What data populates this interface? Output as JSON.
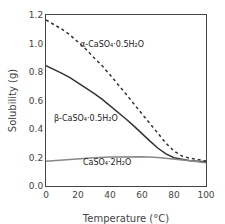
{
  "chart_data": {
    "type": "line",
    "xlabel": "Temperature (°C)",
    "ylabel": "Solubility (g)",
    "xlim": [
      0,
      100
    ],
    "ylim": [
      0.0,
      1.2
    ],
    "xticks": [
      0,
      20,
      40,
      60,
      80,
      100
    ],
    "yticks": [
      {
        "value": 0.0,
        "label": "0.0"
      },
      0.2,
      0.4,
      0.6,
      0.8,
      {
        "value": 1.0,
        "label": "1.0"
      },
      1.2
    ],
    "grid": false,
    "series": [
      {
        "color": "#333333",
        "line_style": "dotted",
        "x": [
          0,
          5,
          10,
          15,
          20,
          25,
          30,
          35,
          40,
          45,
          50,
          55,
          60,
          65,
          70,
          75,
          80,
          85,
          90,
          95,
          100
        ],
        "values": [
          1.165,
          1.135,
          1.1,
          1.06,
          1.01,
          0.96,
          0.9,
          0.845,
          0.78,
          0.715,
          0.645,
          0.575,
          0.505,
          0.435,
          0.365,
          0.3,
          0.245,
          0.21,
          0.195,
          0.183,
          0.175
        ]
      },
      {
        "color": "#333333",
        "line_style": "solid",
        "x": [
          0,
          5,
          10,
          15,
          20,
          25,
          30,
          35,
          40,
          45,
          50,
          55,
          60,
          65,
          70,
          75,
          80,
          85,
          90,
          95,
          100
        ],
        "values": [
          0.845,
          0.82,
          0.79,
          0.76,
          0.725,
          0.69,
          0.65,
          0.61,
          0.565,
          0.52,
          0.47,
          0.42,
          0.365,
          0.315,
          0.265,
          0.225,
          0.198,
          0.186,
          0.178,
          0.174,
          0.172
        ]
      },
      {
        "color": "#888888",
        "line_style": "solid",
        "x": [
          0,
          10,
          20,
          30,
          40,
          50,
          60,
          70,
          80,
          90,
          100
        ],
        "values": [
          0.173,
          0.182,
          0.191,
          0.198,
          0.203,
          0.206,
          0.205,
          0.2,
          0.191,
          0.178,
          0.163
        ]
      }
    ],
    "annotations": [
      {
        "text": "α-CaSO₄·0.5H₂O",
        "x": 20,
        "y": 0.95
      },
      {
        "text": "β-CaSO₄·0.5H₂O",
        "x": 4,
        "y": 0.43
      },
      {
        "text": "CaSO₄·2H₂O",
        "x": 22,
        "y": 0.117
      }
    ]
  }
}
